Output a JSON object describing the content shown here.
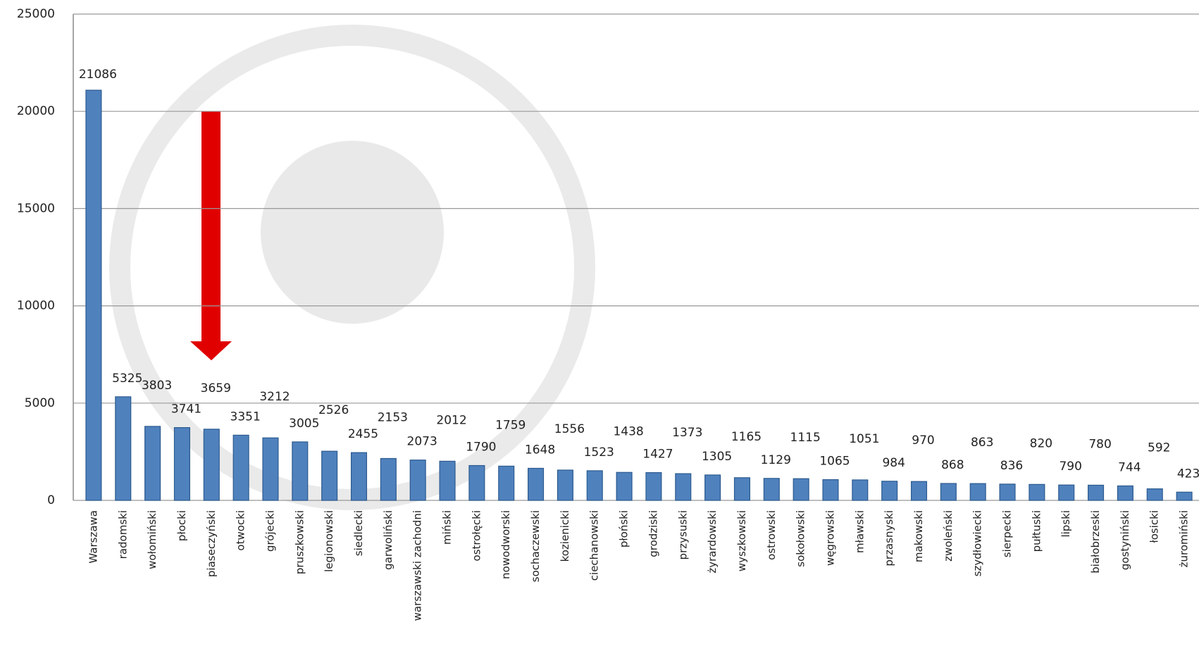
{
  "chart_data": {
    "type": "bar",
    "categories": [
      "Warszawa",
      "radomski",
      "wołomiński",
      "płocki",
      "piaseczyński",
      "otwocki",
      "grójecki",
      "pruszkowski",
      "legionowski",
      "siedlecki",
      "garwoliński",
      "warszawski zachodni",
      "miński",
      "ostrołęcki",
      "nowodworski",
      "sochaczewski",
      "kozienicki",
      "ciechanowski",
      "płoński",
      "grodziski",
      "przysuski",
      "żyrardowski",
      "wyszkowski",
      "ostrowski",
      "sokołowski",
      "węgrowski",
      "mławski",
      "przasnyski",
      "makowski",
      "zwoleński",
      "szydłowiecki",
      "sierpecki",
      "pułtuski",
      "lipski",
      "białobrzeski",
      "gostyniński",
      "łosicki",
      "żuromiński"
    ],
    "values": [
      21086,
      5325,
      3803,
      3741,
      3659,
      3351,
      3212,
      3005,
      2526,
      2455,
      2153,
      2073,
      2012,
      1790,
      1759,
      1648,
      1556,
      1523,
      1438,
      1427,
      1373,
      1305,
      1165,
      1129,
      1115,
      1065,
      1051,
      984,
      970,
      868,
      863,
      836,
      820,
      790,
      780,
      744,
      592,
      423
    ],
    "color": "#4f81bd",
    "ylim": [
      0,
      25000
    ],
    "yticks": [
      0,
      5000,
      10000,
      15000,
      20000,
      25000
    ],
    "grid": true
  }
}
